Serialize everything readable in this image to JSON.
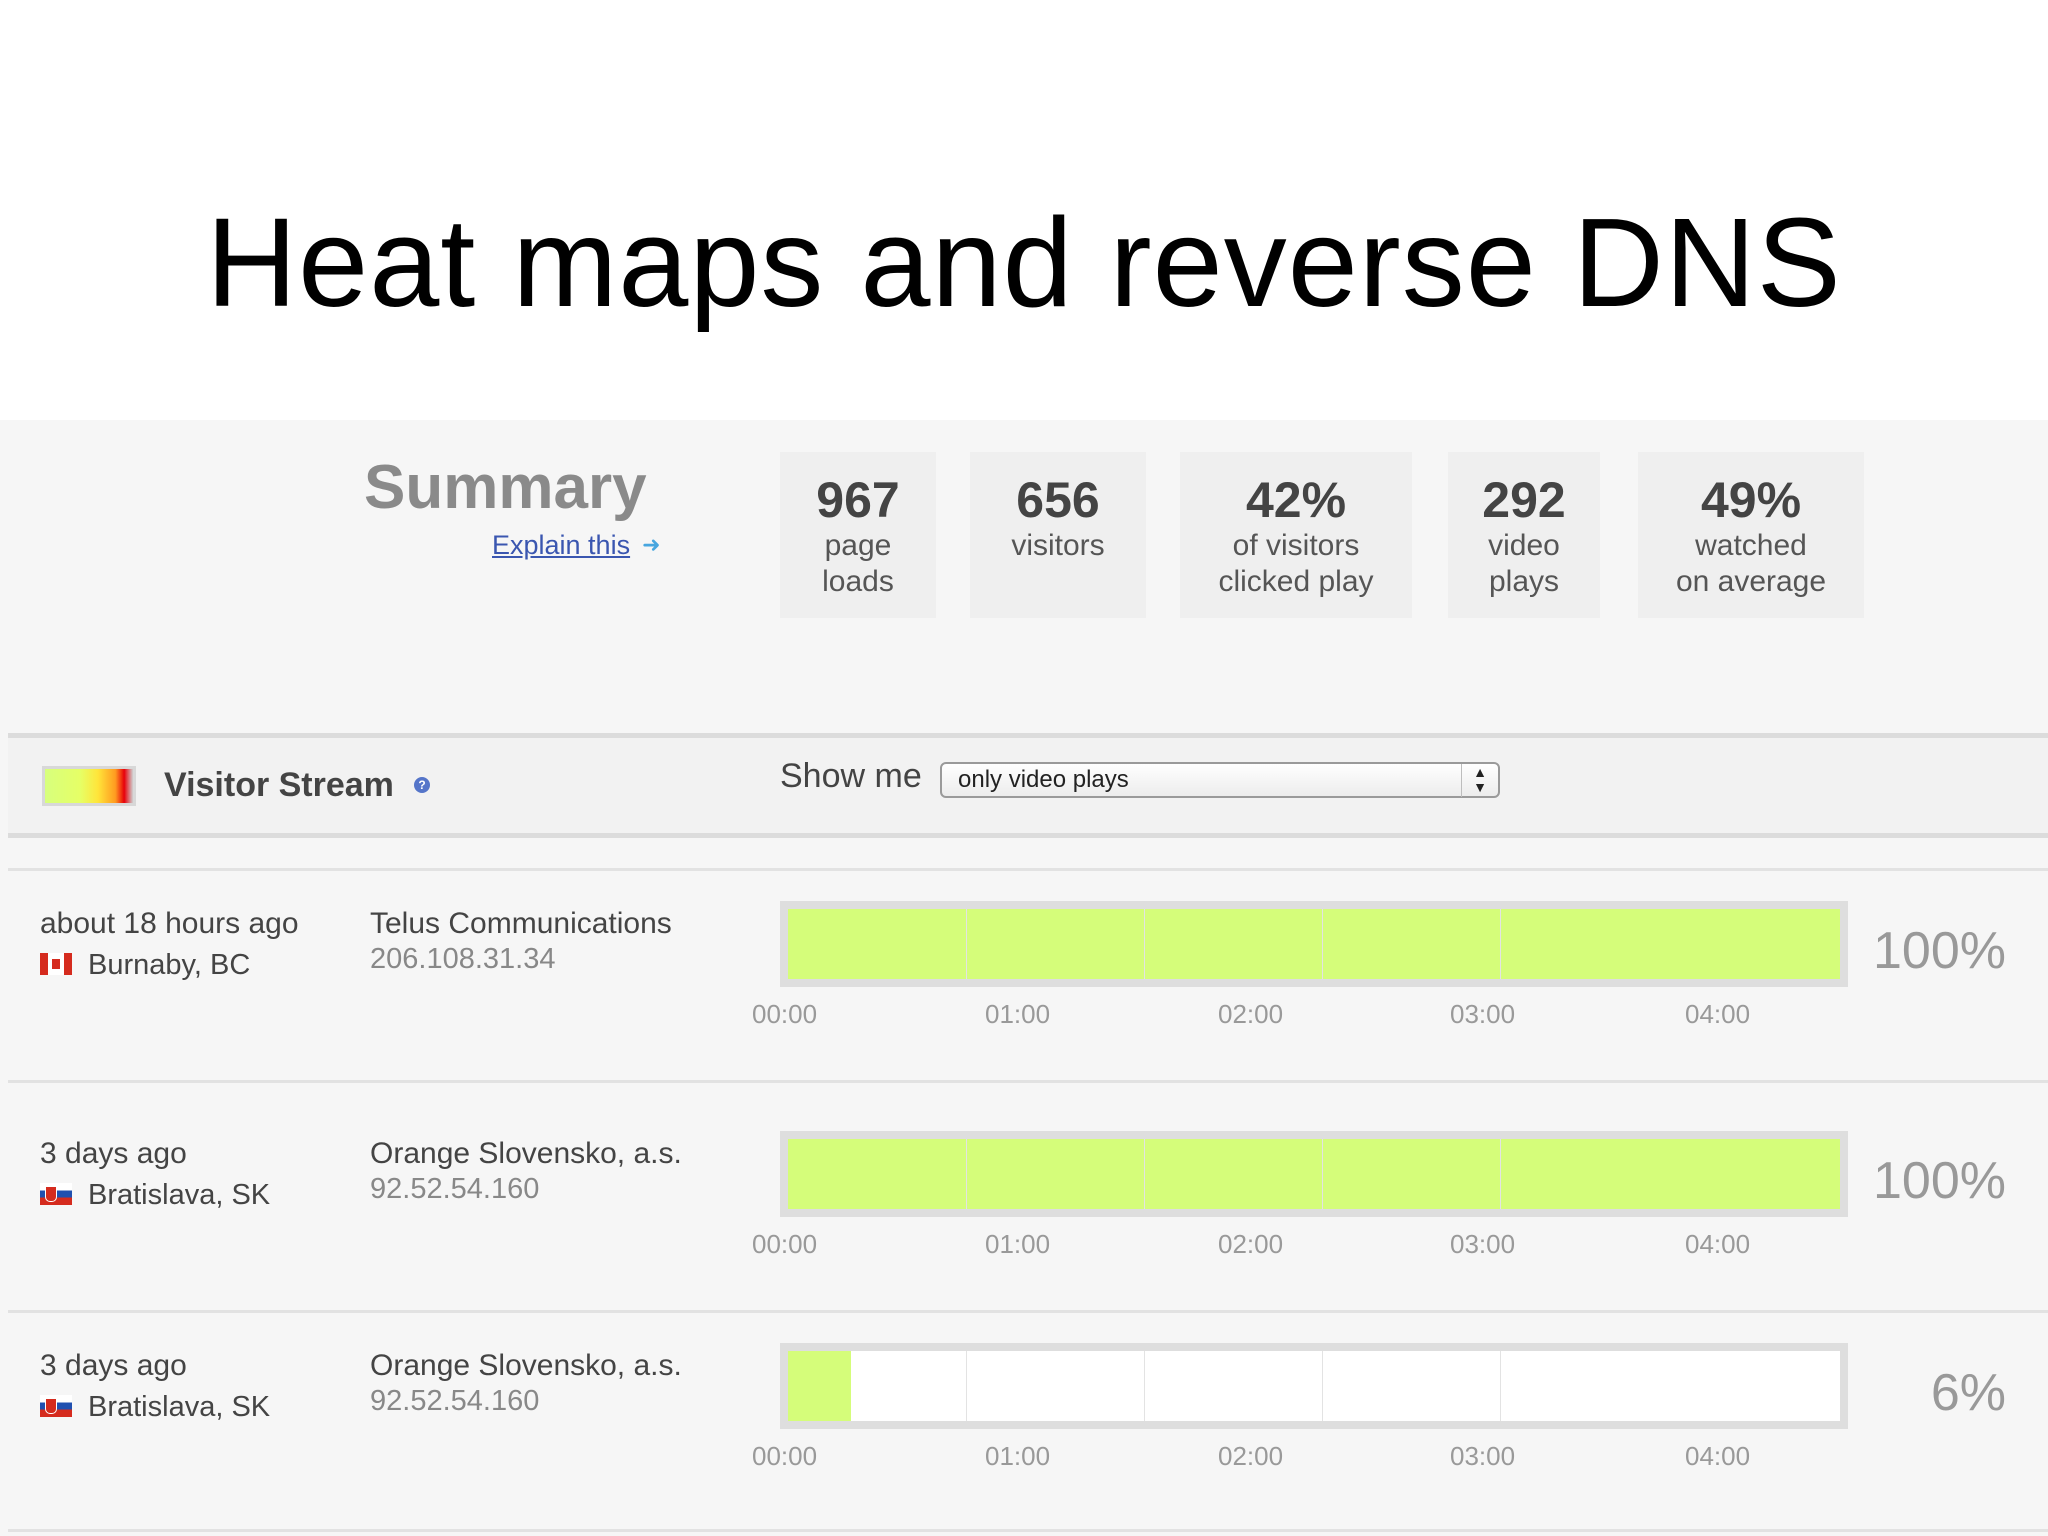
{
  "slide_title": "Heat maps and reverse DNS",
  "summary": {
    "heading": "Summary",
    "explain_link": "Explain this",
    "stats": [
      {
        "value": "967",
        "label_1": "page",
        "label_2": "loads"
      },
      {
        "value": "656",
        "label_1": "visitors",
        "label_2": ""
      },
      {
        "value": "42%",
        "label_1": "of visitors",
        "label_2": "clicked play"
      },
      {
        "value": "292",
        "label_1": "video",
        "label_2": "plays"
      },
      {
        "value": "49%",
        "label_1": "watched",
        "label_2": "on average"
      }
    ]
  },
  "visitor_stream": {
    "title": "Visitor Stream",
    "show_me_label": "Show me",
    "filter_selected": "only video plays"
  },
  "timeline_ticks": [
    "00:00",
    "01:00",
    "02:00",
    "03:00",
    "04:00"
  ],
  "rows": [
    {
      "time_ago": "about 18 hours ago",
      "flag": "canada-flag-icon",
      "location": "Burnaby, BC",
      "isp": "Telus Communications",
      "ip": "206.108.31.34",
      "watched_fraction": 1.0,
      "percent": "100%"
    },
    {
      "time_ago": "3 days ago",
      "flag": "slovakia-flag-icon",
      "location": "Bratislava, SK",
      "isp": "Orange Slovensko, a.s.",
      "ip": "92.52.54.160",
      "watched_fraction": 1.0,
      "percent": "100%"
    },
    {
      "time_ago": "3 days ago",
      "flag": "slovakia-flag-icon",
      "location": "Bratislava, SK",
      "isp": "Orange Slovensko, a.s.",
      "ip": "92.52.54.160",
      "watched_fraction": 0.06,
      "percent": "6%"
    }
  ],
  "colors": {
    "watched": "#d5fd7a",
    "unwatched": "#ffffff",
    "link": "#3a56b0"
  }
}
